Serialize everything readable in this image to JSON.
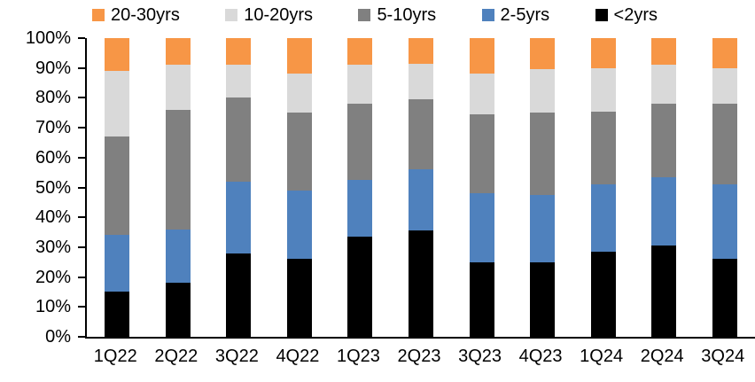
{
  "chart_data": {
    "type": "bar",
    "stacked": true,
    "percent_stacked": true,
    "title": "",
    "xlabel": "",
    "ylabel": "",
    "categories": [
      "1Q22",
      "2Q22",
      "3Q22",
      "4Q22",
      "1Q23",
      "2Q23",
      "3Q23",
      "4Q23",
      "1Q24",
      "2Q24",
      "3Q24"
    ],
    "series": [
      {
        "name": "<2yrs",
        "color": "#000000",
        "values": [
          15,
          18,
          28,
          26,
          33.5,
          35.5,
          25,
          25,
          28.5,
          30.5,
          26
        ]
      },
      {
        "name": "2-5yrs",
        "color": "#4F81BD",
        "values": [
          19,
          18,
          24,
          23,
          19,
          20.5,
          23,
          22.5,
          22.5,
          23,
          25
        ]
      },
      {
        "name": "5-10yrs",
        "color": "#808080",
        "values": [
          33,
          40,
          28,
          26,
          25.5,
          23.5,
          26.5,
          27.5,
          24.5,
          24.5,
          27
        ]
      },
      {
        "name": "10-20yrs",
        "color": "#D9D9D9",
        "values": [
          22,
          15,
          11,
          13,
          13,
          12,
          13.5,
          14.5,
          14.5,
          13,
          12
        ]
      },
      {
        "name": "20-30yrs",
        "color": "#F79646",
        "values": [
          11,
          9,
          9,
          12,
          9,
          8.5,
          12,
          10.5,
          10,
          9,
          10
        ]
      }
    ],
    "legend_order": [
      "20-30yrs",
      "10-20yrs",
      "5-10yrs",
      "2-5yrs",
      "<2yrs"
    ],
    "legend_position": "top",
    "y_ticks": [
      "0%",
      "10%",
      "20%",
      "30%",
      "40%",
      "50%",
      "60%",
      "70%",
      "80%",
      "90%",
      "100%"
    ],
    "ylim": [
      0,
      100
    ],
    "grid": false,
    "axis_color": "#000000",
    "background_color": "#FFFFFF"
  }
}
